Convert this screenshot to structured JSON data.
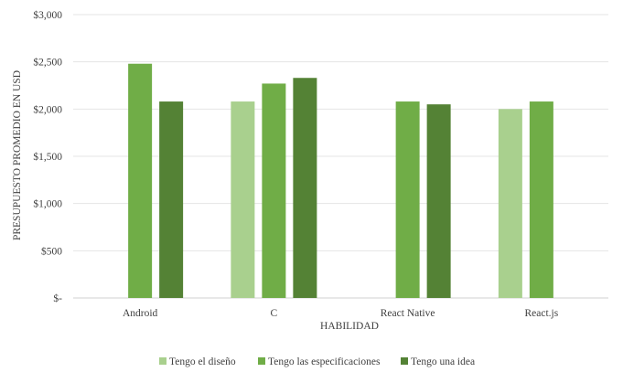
{
  "chart_data": {
    "type": "bar",
    "xlabel": "HABILIDAD",
    "ylabel": "PRESUPUESTO PROMEDIO EN USD",
    "categories": [
      "Android",
      "C",
      "React Native",
      "React.js"
    ],
    "ylim": [
      0,
      3000
    ],
    "y_ticks": [
      0,
      500,
      1000,
      1500,
      2000,
      2500,
      3000
    ],
    "y_tick_labels": [
      "$-",
      "$500",
      "$1,000",
      "$1,500",
      "$2,000",
      "$2,500",
      "$3,000"
    ],
    "grid": true,
    "legend_position": "bottom",
    "series": [
      {
        "name": "Tengo el diseño",
        "color": "#a9d08e",
        "values": [
          null,
          2080,
          null,
          2000
        ]
      },
      {
        "name": "Tengo las especificaciones",
        "color": "#70ad47",
        "values": [
          2480,
          2270,
          2080,
          2080
        ]
      },
      {
        "name": "Tengo una idea",
        "color": "#548235",
        "values": [
          2080,
          2330,
          2050,
          null
        ]
      }
    ]
  }
}
